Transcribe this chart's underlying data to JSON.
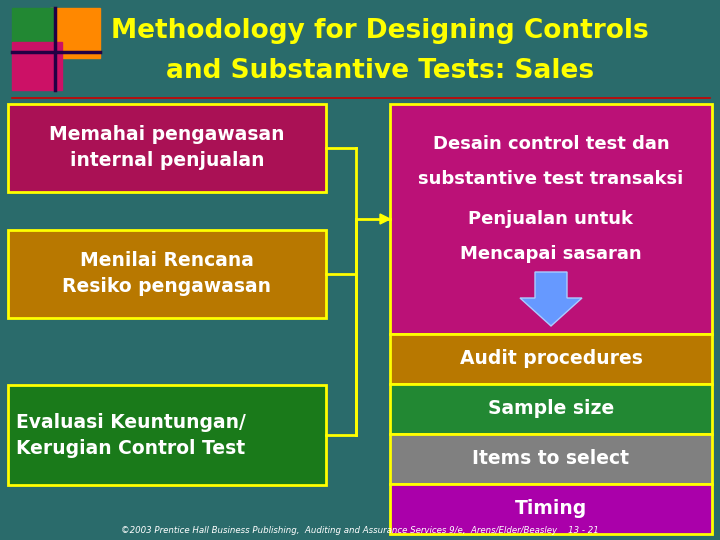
{
  "title_line1": "Methodology for Designing Controls",
  "title_line2": "and Substantive Tests: Sales",
  "title_color": "#FFFF00",
  "bg_color": "#2A6B6B",
  "left_boxes": [
    {
      "text": "Memahai pengawasan\ninternal penjualan",
      "color": "#AA1155",
      "align": "center"
    },
    {
      "text": "Menilai Rencana\nResiko pengawasan",
      "color": "#B87800",
      "align": "center"
    },
    {
      "text": "Evaluasi Keuntungan/\nKerugian Control Test",
      "color": "#1A7A1A",
      "align": "left"
    }
  ],
  "right_top_box": {
    "text": "Desain control test dan\nsubstantive test transaksi\nPenjualan untuk\nMencapai sasaran",
    "color": "#BB1177"
  },
  "right_bottom_boxes": [
    {
      "text": "Audit procedures",
      "color": "#B87800"
    },
    {
      "text": "Sample size",
      "color": "#228833"
    },
    {
      "text": "Items to select",
      "color": "#808080"
    },
    {
      "text": "Timing",
      "color": "#AA00AA"
    }
  ],
  "connector_color": "#FFFF00",
  "footer_text": "©2003 Prentice Hall Business Publishing,  Auditing and Assurance Services 9/e,  Arens/Elder/Beasley    13 - 21",
  "footer_color": "#FFFFFF",
  "text_color": "#FFFFFF",
  "red_line_color": "#CC0000",
  "lw": 2.0
}
